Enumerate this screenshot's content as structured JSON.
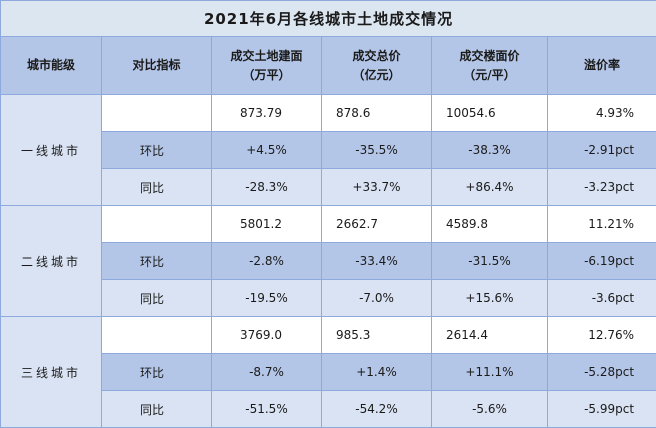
{
  "title": "2021年6月各线城市土地成交情况",
  "headers": {
    "tier": "城市能级",
    "metric": "对比指标",
    "area_line1": "成交土地建面",
    "area_line2": "（万平）",
    "amount_line1": "成交总价",
    "amount_line2": "（亿元）",
    "price_line1": "成交楼面价",
    "price_line2": "（元/平）",
    "premium": "溢价率"
  },
  "groups": [
    {
      "tier": "一线城市",
      "rows": [
        {
          "metric": "",
          "area": "873.79",
          "amount": "878.6",
          "price": "10054.6",
          "premium": "4.93%"
        },
        {
          "metric": "环比",
          "area": "+4.5%",
          "amount": "-35.5%",
          "price": "-38.3%",
          "premium": "-2.91pct"
        },
        {
          "metric": "同比",
          "area": "-28.3%",
          "amount": "+33.7%",
          "price": "+86.4%",
          "premium": "-3.23pct"
        }
      ]
    },
    {
      "tier": "二线城市",
      "rows": [
        {
          "metric": "",
          "area": "5801.2",
          "amount": "2662.7",
          "price": "4589.8",
          "premium": "11.21%"
        },
        {
          "metric": "环比",
          "area": "-2.8%",
          "amount": "-33.4%",
          "price": "-31.5%",
          "premium": "-6.19pct"
        },
        {
          "metric": "同比",
          "area": "-19.5%",
          "amount": "-7.0%",
          "price": "+15.6%",
          "premium": "-3.6pct"
        }
      ]
    },
    {
      "tier": "三线城市",
      "rows": [
        {
          "metric": "",
          "area": "3769.0",
          "amount": "985.3",
          "price": "2614.4",
          "premium": "12.76%"
        },
        {
          "metric": "环比",
          "area": "-8.7%",
          "amount": "+1.4%",
          "price": "+11.1%",
          "premium": "-5.28pct"
        },
        {
          "metric": "同比",
          "area": "-51.5%",
          "amount": "-54.2%",
          "price": "-5.6%",
          "premium": "-5.99pct"
        }
      ]
    }
  ]
}
